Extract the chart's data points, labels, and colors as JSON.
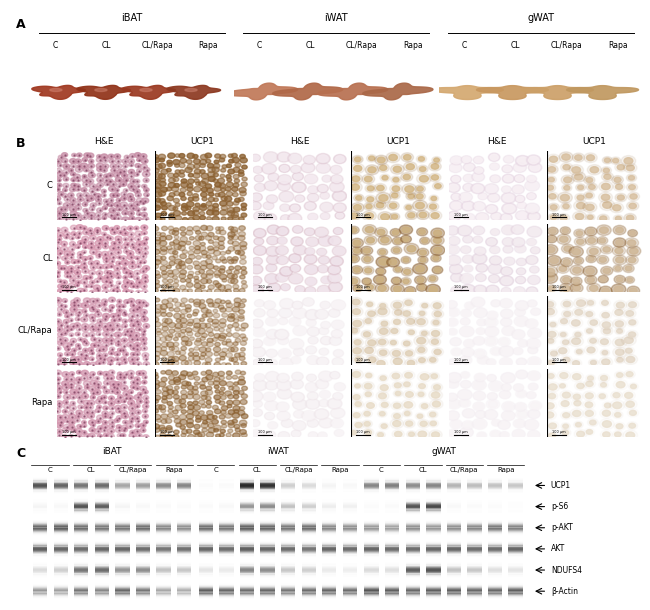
{
  "tissue_groups": [
    "iBAT",
    "iWAT",
    "gWAT"
  ],
  "treatment_labels": [
    "C",
    "CL",
    "CL/Rapa",
    "Rapa"
  ],
  "stain_labels": [
    "H&E",
    "UCP1"
  ],
  "wb_labels": [
    "UCP1",
    "p-S6",
    "p-AKT",
    "AKT",
    "NDUFS4",
    "β-Actin"
  ],
  "panel_A_bg": "#d0c8c0",
  "iBAT_tissue_bg": "#b8a898",
  "iWAT_tissue_bg": "#b8aca0",
  "gWAT_tissue_bg": "#c0b8a8",
  "iBAT_colors": [
    "#a03820",
    "#903218",
    "#9a3820",
    "#8c3820"
  ],
  "iWAT_colors": [
    "#c07858",
    "#b06848",
    "#b87050",
    "#aa6848"
  ],
  "gWAT_colors": [
    "#d4a870",
    "#c89860",
    "#cca068",
    "#c09860"
  ],
  "hne_ibat_bg": [
    "#e8d4dc",
    "#e0c8d8",
    "#e4ccd8",
    "#e4ccd8"
  ],
  "hne_ibat_cell": [
    "#c890a8",
    "#d898b0",
    "#d498b0",
    "#d498b0"
  ],
  "hne_iwat_bg": [
    "#f4eaf0",
    "#f0e4ec",
    "#f8f4f6",
    "#f8f4f6"
  ],
  "hne_iwat_cell": [
    "#e0c8d4",
    "#dcc0cc",
    "#f0e8ec",
    "#f0e8ec"
  ],
  "hne_gwat_bg": [
    "#f8f0f4",
    "#f4ecf0",
    "#f8f4f6",
    "#f8f4f6"
  ],
  "hne_gwat_cell": [
    "#e8d8e4",
    "#e4d4e0",
    "#f4eef2",
    "#f4eef2"
  ],
  "ucp1_ibat_bg": [
    "#c8a878",
    "#c0a070",
    "#c4a474",
    "#bea070"
  ],
  "ucp1_iwat_bg": [
    "#d4b888",
    "#ccb080",
    "#e0d0b8",
    "#e8dcc8"
  ],
  "ucp1_gwat_bg": [
    "#d8c0a0",
    "#d0b898",
    "#e4d8c8",
    "#eae0d0"
  ],
  "wb_bg_color": "#c8c8c8",
  "wb_light_bg": "#e0e0e0"
}
